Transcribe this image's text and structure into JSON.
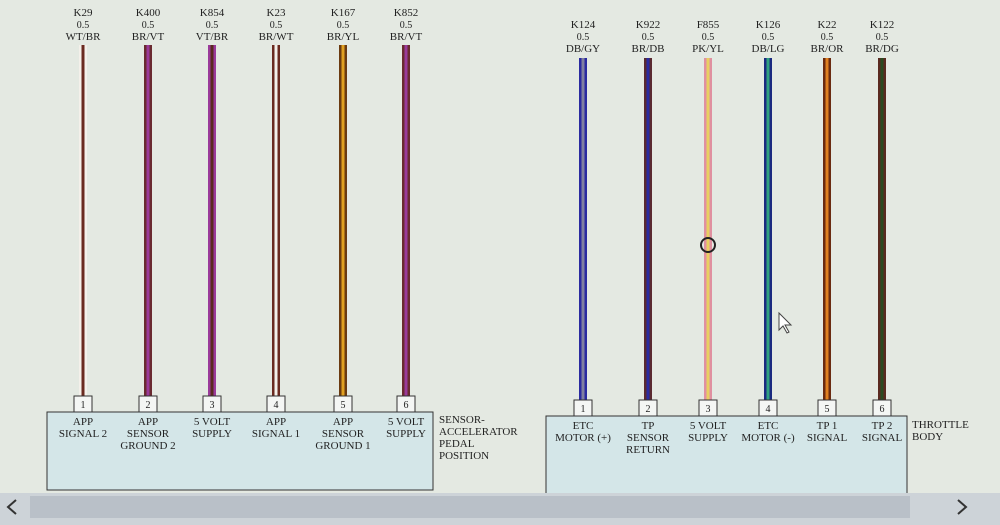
{
  "connectors": [
    {
      "label": [
        "SENSOR-",
        "ACCELERATOR",
        "PEDAL",
        "POSITION"
      ],
      "wires": [
        {
          "circuit": "K29",
          "gauge": "0.5",
          "color_code": "WT/BR",
          "pin": 1,
          "function": [
            "APP",
            "SIGNAL 2"
          ]
        },
        {
          "circuit": "K400",
          "gauge": "0.5",
          "color_code": "BR/VT",
          "pin": 2,
          "function": [
            "APP",
            "SENSOR",
            "GROUND 2"
          ]
        },
        {
          "circuit": "K854",
          "gauge": "0.5",
          "color_code": "VT/BR",
          "pin": 3,
          "function": [
            "5 VOLT",
            "SUPPLY"
          ]
        },
        {
          "circuit": "K23",
          "gauge": "0.5",
          "color_code": "BR/WT",
          "pin": 4,
          "function": [
            "APP",
            "SIGNAL 1"
          ]
        },
        {
          "circuit": "K167",
          "gauge": "0.5",
          "color_code": "BR/YL",
          "pin": 5,
          "function": [
            "APP",
            "SENSOR",
            "GROUND 1"
          ]
        },
        {
          "circuit": "K852",
          "gauge": "0.5",
          "color_code": "BR/VT",
          "pin": 6,
          "function": [
            "5 VOLT",
            "SUPPLY"
          ]
        }
      ]
    },
    {
      "label": [
        "THROTTLE",
        "BODY"
      ],
      "wires": [
        {
          "circuit": "K124",
          "gauge": "0.5",
          "color_code": "DB/GY",
          "pin": 1,
          "function": [
            "ETC",
            "MOTOR (+)"
          ]
        },
        {
          "circuit": "K922",
          "gauge": "0.5",
          "color_code": "BR/DB",
          "pin": 2,
          "function": [
            "TP",
            "SENSOR",
            "RETURN"
          ]
        },
        {
          "circuit": "F855",
          "gauge": "0.5",
          "color_code": "PK/YL",
          "pin": 3,
          "function": [
            "5 VOLT",
            "SUPPLY"
          ]
        },
        {
          "circuit": "K126",
          "gauge": "0.5",
          "color_code": "DB/LG",
          "pin": 4,
          "function": [
            "ETC",
            "MOTOR (-)"
          ]
        },
        {
          "circuit": "K22",
          "gauge": "0.5",
          "color_code": "BR/OR",
          "pin": 5,
          "function": [
            "TP 1",
            "SIGNAL"
          ]
        },
        {
          "circuit": "K122",
          "gauge": "0.5",
          "color_code": "BR/DG",
          "pin": 6,
          "function": [
            "TP 2",
            "SIGNAL"
          ]
        }
      ]
    }
  ]
}
